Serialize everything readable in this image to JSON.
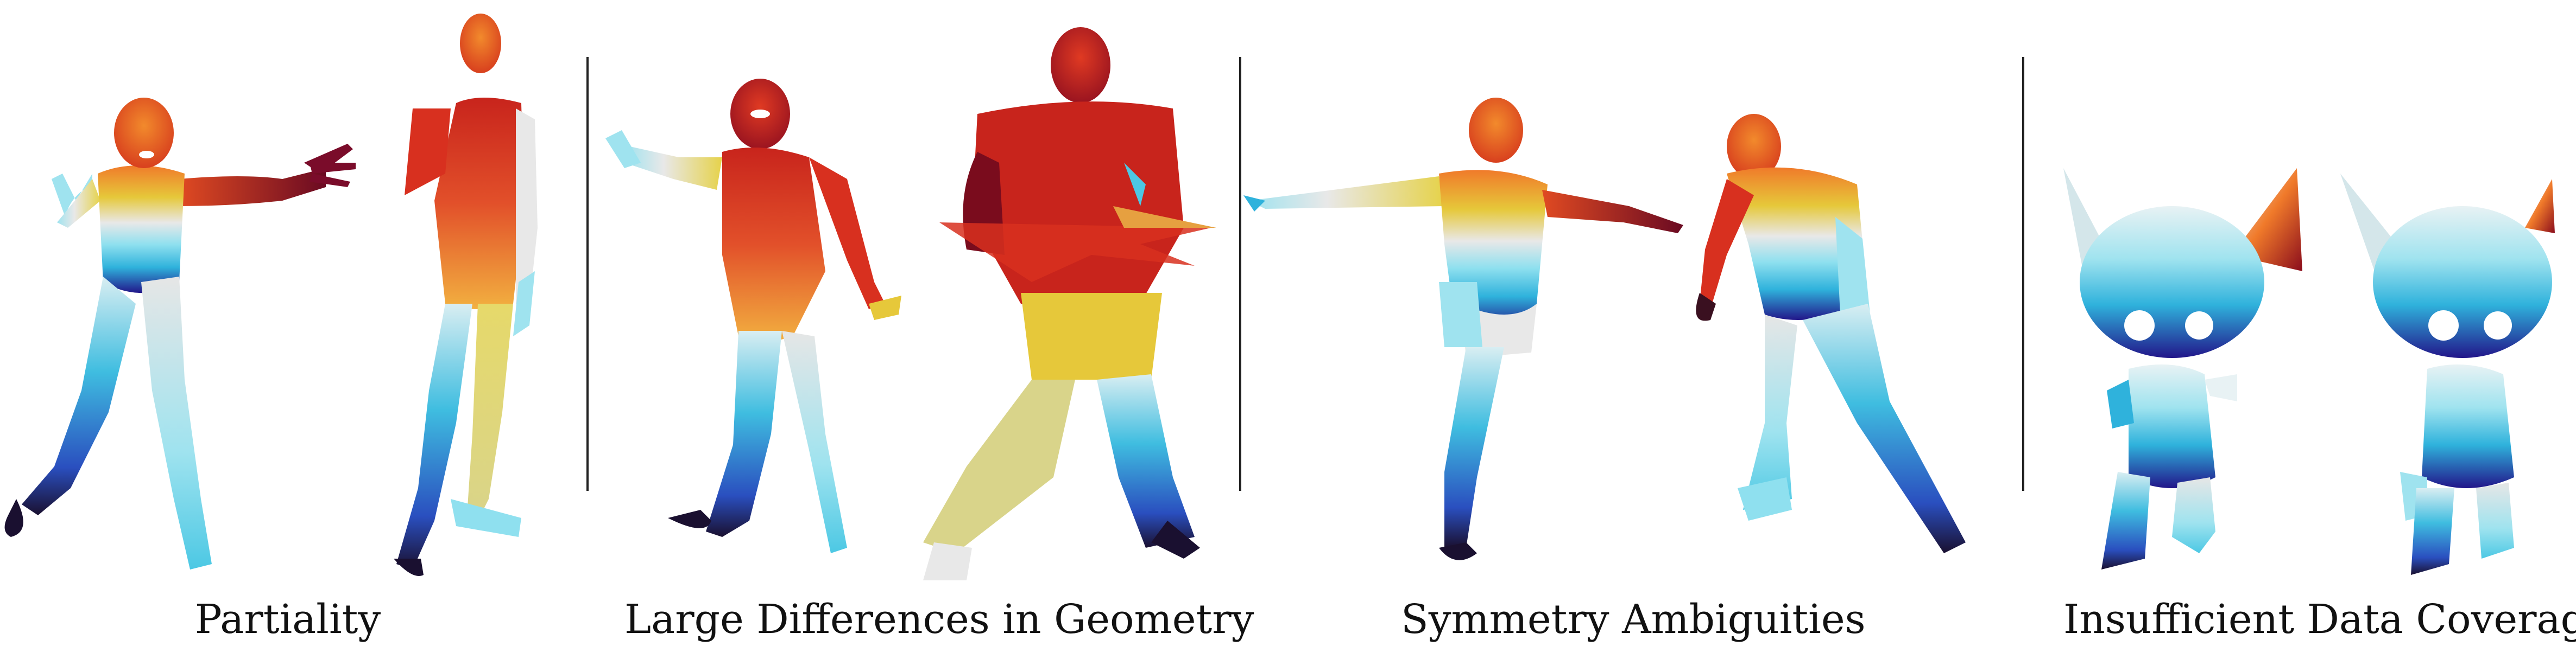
{
  "panels": [
    {
      "caption": "Partiality"
    },
    {
      "caption": "Large Differences in Geometry"
    },
    {
      "caption": "Symmetry Ambiguities"
    },
    {
      "caption": "Insufficient Data Coverage"
    }
  ],
  "colors": {
    "dark_red": "#7a0c1d",
    "red": "#d8301f",
    "orange": "#f07a2a",
    "yellow": "#e6c83a",
    "pale": "#eaeaea",
    "cyan": "#8fe0ef",
    "sky": "#2fb2dc",
    "blue": "#2a4fbf",
    "navy": "#22168a",
    "dark": "#1a1030"
  }
}
